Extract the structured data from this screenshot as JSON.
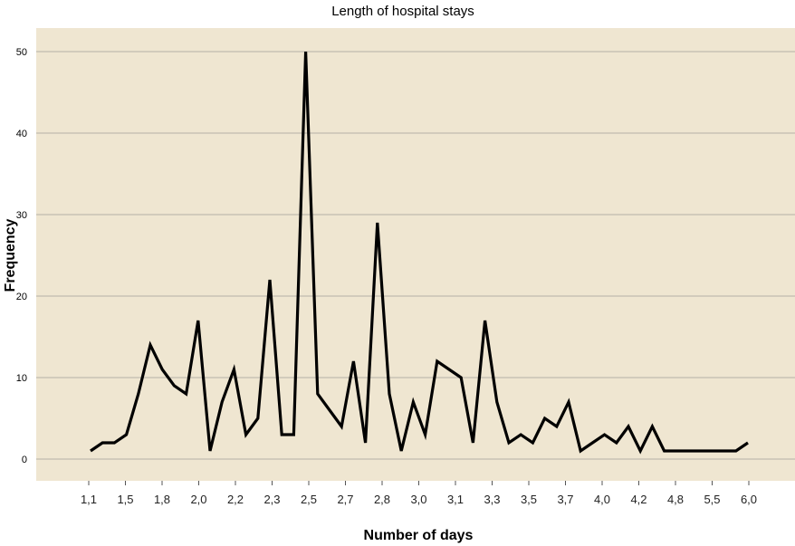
{
  "chart_data": {
    "type": "line",
    "title": "Length of hospital stays",
    "xlabel": "Number of days",
    "ylabel": "Frequency",
    "ylim": [
      0,
      50
    ],
    "yticks": [
      0,
      10,
      20,
      30,
      40,
      50
    ],
    "xtick_labels": [
      "1,1",
      "1,5",
      "1,8",
      "2,0",
      "2,2",
      "2,3",
      "2,5",
      "2,7",
      "2,8",
      "3,0",
      "3,1",
      "3,3",
      "3,5",
      "3,7",
      "4,0",
      "4,2",
      "4,8",
      "5,5",
      "6,0"
    ],
    "grid": true,
    "colors": {
      "plot_background": "#efe6d1",
      "line": "#000000",
      "grid": "#b5b0a6"
    },
    "series": [
      {
        "values": [
          1,
          2,
          2,
          3,
          8,
          14,
          11,
          9,
          8,
          17,
          1,
          7,
          11,
          3,
          5,
          22,
          3,
          3,
          50,
          8,
          6,
          4,
          12,
          2,
          29,
          8,
          1,
          7,
          3,
          12,
          11,
          10,
          2,
          17,
          7,
          2,
          3,
          2,
          5,
          4,
          7,
          1,
          2,
          3,
          2,
          4,
          1,
          4,
          1,
          1,
          1,
          1,
          1,
          1,
          1,
          2
        ]
      }
    ]
  }
}
